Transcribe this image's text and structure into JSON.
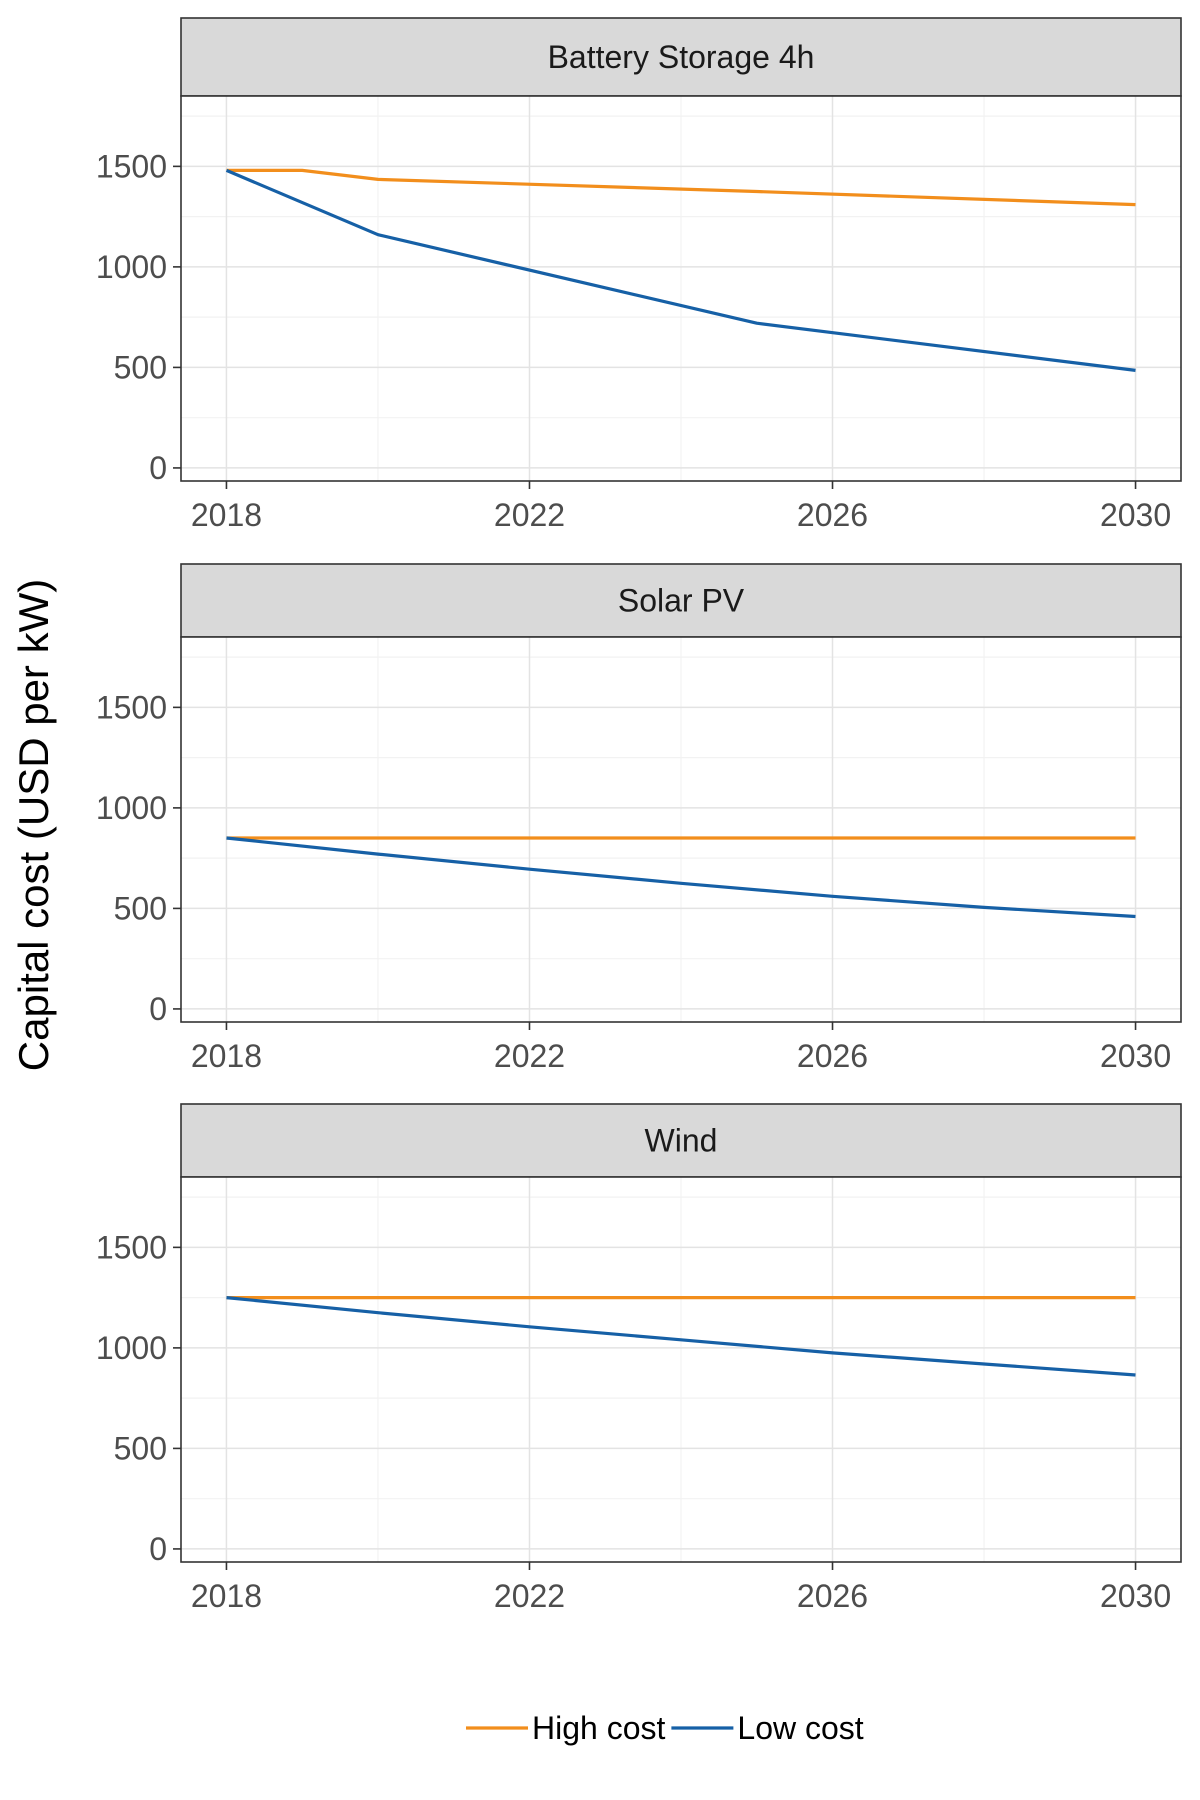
{
  "chart_data": {
    "type": "line",
    "ylabel": "Capital cost (USD per kW)",
    "xlim": [
      2017.4,
      2030.6
    ],
    "ylim": [
      -65,
      1850
    ],
    "x_ticks": [
      2018,
      2022,
      2026,
      2030
    ],
    "y_ticks": [
      0,
      500,
      1000,
      1500
    ],
    "grid": true,
    "legend": {
      "placement": "bottom",
      "entries": [
        {
          "name": "High cost",
          "color": "#f28e1c"
        },
        {
          "name": "Low cost",
          "color": "#1660a6"
        }
      ]
    },
    "panels": [
      {
        "title": "Battery Storage 4h",
        "series": [
          {
            "name": "High cost",
            "color": "#f28e1c",
            "x": [
              2018,
              2019,
              2020,
              2025,
              2030
            ],
            "y": [
              1480,
              1480,
              1435,
              1375,
              1310
            ]
          },
          {
            "name": "Low cost",
            "color": "#1660a6",
            "x": [
              2018,
              2020,
              2025,
              2030
            ],
            "y": [
              1480,
              1160,
              720,
              485
            ]
          }
        ]
      },
      {
        "title": "Solar PV",
        "series": [
          {
            "name": "High cost",
            "color": "#f28e1c",
            "x": [
              2018,
              2030
            ],
            "y": [
              850,
              850
            ]
          },
          {
            "name": "Low cost",
            "color": "#1660a6",
            "x": [
              2018,
              2020,
              2022,
              2024,
              2026,
              2028,
              2030
            ],
            "y": [
              850,
              770,
              695,
              625,
              560,
              505,
              460
            ]
          }
        ]
      },
      {
        "title": "Wind",
        "series": [
          {
            "name": "High cost",
            "color": "#f28e1c",
            "x": [
              2018,
              2030
            ],
            "y": [
              1250,
              1250
            ]
          },
          {
            "name": "Low cost",
            "color": "#1660a6",
            "x": [
              2018,
              2020,
              2022,
              2024,
              2026,
              2028,
              2030
            ],
            "y": [
              1250,
              1175,
              1105,
              1040,
              975,
              920,
              865
            ]
          }
        ]
      }
    ]
  }
}
